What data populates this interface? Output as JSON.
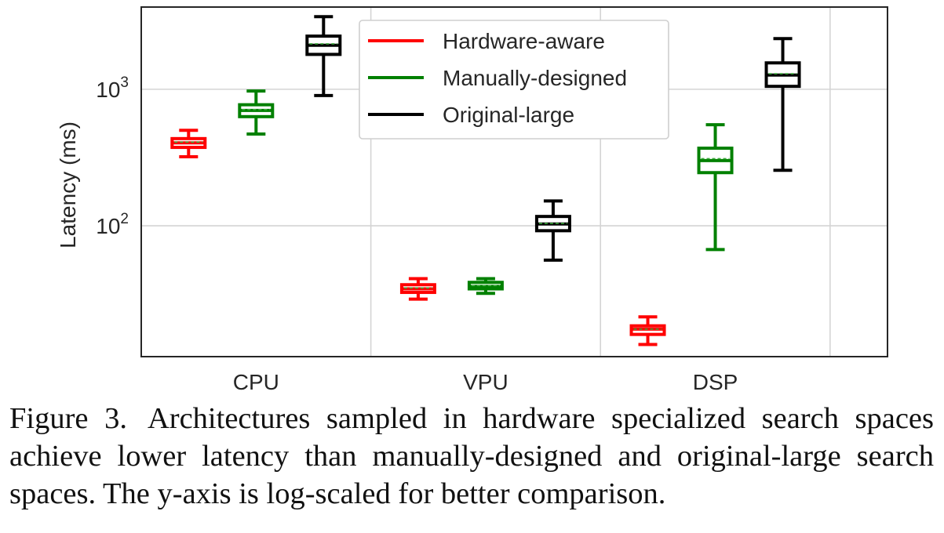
{
  "chart_data": {
    "type": "boxplot",
    "y_scale": "log",
    "ylabel": "Latency (ms)",
    "ylim": [
      11,
      4000
    ],
    "y_ticks": [
      {
        "value": 100,
        "base": "10",
        "exp": "2"
      },
      {
        "value": 1000,
        "base": "10",
        "exp": "3"
      }
    ],
    "categories": [
      "CPU",
      "VPU",
      "DSP"
    ],
    "grid": true,
    "legend_position": "top-center",
    "series": [
      {
        "name": "Hardware-aware",
        "color": "#ff0000",
        "boxes": [
          {
            "category": "CPU",
            "whisker_low": 320,
            "q1": 375,
            "median": 405,
            "mean": 410,
            "q3": 435,
            "whisker_high": 500
          },
          {
            "category": "VPU",
            "whisker_low": 29,
            "q1": 32.5,
            "median": 34.5,
            "mean": 35,
            "q3": 37,
            "whisker_high": 41
          },
          {
            "category": "DSP",
            "whisker_low": 13.5,
            "q1": 16,
            "median": 17.5,
            "mean": 17.5,
            "q3": 18.5,
            "whisker_high": 21.5
          }
        ]
      },
      {
        "name": "Manually-designed",
        "color": "#008000",
        "boxes": [
          {
            "category": "CPU",
            "whisker_low": 470,
            "q1": 630,
            "median": 700,
            "mean": 710,
            "q3": 770,
            "whisker_high": 970
          },
          {
            "category": "VPU",
            "whisker_low": 32,
            "q1": 34.5,
            "median": 36,
            "mean": 36.5,
            "q3": 38.5,
            "whisker_high": 41
          },
          {
            "category": "DSP",
            "whisker_low": 67,
            "q1": 245,
            "median": 300,
            "mean": 310,
            "q3": 370,
            "whisker_high": 550
          }
        ]
      },
      {
        "name": "Original-large",
        "color": "#000000",
        "boxes": [
          {
            "category": "CPU",
            "whisker_low": 900,
            "q1": 1800,
            "median": 2100,
            "mean": 2150,
            "q3": 2450,
            "whisker_high": 3400
          },
          {
            "category": "VPU",
            "whisker_low": 56,
            "q1": 92,
            "median": 103,
            "mean": 104,
            "q3": 117,
            "whisker_high": 152
          },
          {
            "category": "DSP",
            "whisker_low": 255,
            "q1": 1050,
            "median": 1270,
            "mean": 1300,
            "q3": 1560,
            "whisker_high": 2350
          }
        ]
      }
    ]
  },
  "caption": {
    "label": "Figure 3.",
    "text": "Architectures sampled in hardware specialized search spaces achieve lower latency than manually-designed and original-large search spaces. The y-axis is log-scaled for better comparison."
  }
}
